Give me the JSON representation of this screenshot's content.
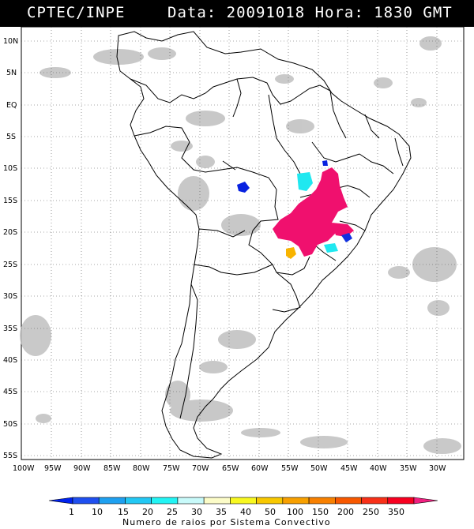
{
  "header": {
    "source": "CPTEC/INPE",
    "datetime": "Data: 20091018 Hora: 1830 GMT"
  },
  "map": {
    "lat_labels": [
      "10N",
      "5N",
      "EQ",
      "5S",
      "10S",
      "15S",
      "20S",
      "25S",
      "30S",
      "35S",
      "40S",
      "45S",
      "50S",
      "55S"
    ],
    "lon_labels": [
      "100W",
      "95W",
      "90W",
      "85W",
      "80W",
      "75W",
      "70W",
      "65W",
      "60W",
      "55W",
      "50W",
      "45W",
      "40W",
      "35W",
      "30W"
    ],
    "lat_range": [
      -56,
      13
    ],
    "lon_range": [
      -100,
      -27
    ],
    "grid": true
  },
  "colorbar": {
    "title": "Numero de raios por Sistema Convectivo",
    "ticks": [
      "1",
      "10",
      "15",
      "20",
      "25",
      "30",
      "35",
      "40",
      "50",
      "100",
      "150",
      "200",
      "250",
      "350"
    ],
    "colors": [
      "#0022ee",
      "#1f4ff0",
      "#1ea0f0",
      "#22c8f4",
      "#22f4f4",
      "#c8fafa",
      "#fcfcc8",
      "#f8f820",
      "#f8c800",
      "#f8a000",
      "#f88000",
      "#f85800",
      "#f83018",
      "#f80020",
      "#f02080"
    ]
  },
  "systems": [
    {
      "label": "large-system",
      "color": "#f0106e"
    },
    {
      "label": "cyan-system",
      "color": "#20e8f0"
    },
    {
      "label": "blue-system",
      "color": "#0822e0"
    },
    {
      "label": "orange-system",
      "color": "#f8b400"
    }
  ]
}
